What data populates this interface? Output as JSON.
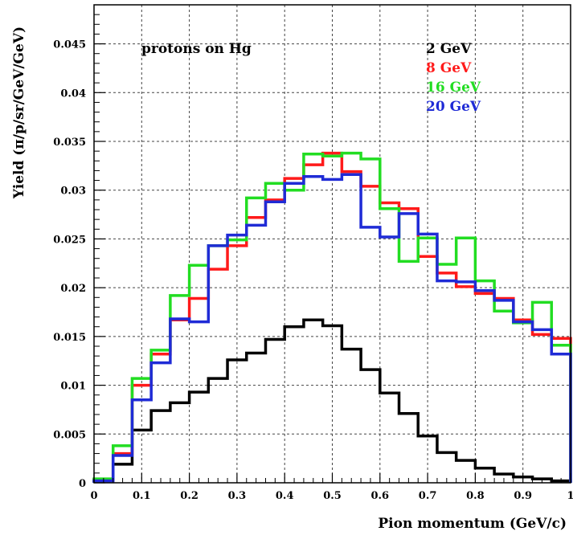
{
  "chart_data": {
    "type": "line",
    "title": "",
    "xlabel": "Pion momentum (GeV/c)",
    "ylabel": "Yield (π/p/sr/GeV/GeV)",
    "annotation": "protons on Hg",
    "xlim": [
      0,
      1
    ],
    "ylim": [
      0,
      0.049
    ],
    "grid": true,
    "legend_position": "top-right",
    "x_ticks": [
      {
        "value": 0,
        "label": "0"
      },
      {
        "value": 0.1,
        "label": "0.1"
      },
      {
        "value": 0.2,
        "label": "0.2"
      },
      {
        "value": 0.3,
        "label": "0.3"
      },
      {
        "value": 0.4,
        "label": "0.4"
      },
      {
        "value": 0.5,
        "label": "0.5"
      },
      {
        "value": 0.6,
        "label": "0.6"
      },
      {
        "value": 0.7,
        "label": "0.7"
      },
      {
        "value": 0.8,
        "label": "0.8"
      },
      {
        "value": 0.9,
        "label": "0.9"
      },
      {
        "value": 1,
        "label": "1"
      }
    ],
    "y_ticks": [
      {
        "value": 0,
        "label": "0"
      },
      {
        "value": 0.005,
        "label": "0.005"
      },
      {
        "value": 0.01,
        "label": "0.01"
      },
      {
        "value": 0.015,
        "label": "0.015"
      },
      {
        "value": 0.02,
        "label": "0.02"
      },
      {
        "value": 0.025,
        "label": "0.025"
      },
      {
        "value": 0.03,
        "label": "0.03"
      },
      {
        "value": 0.035,
        "label": "0.035"
      },
      {
        "value": 0.04,
        "label": "0.04"
      },
      {
        "value": 0.045,
        "label": "0.045"
      }
    ],
    "bin_width": 0.04,
    "x": [
      0.02,
      0.06,
      0.1,
      0.14,
      0.18,
      0.22,
      0.26,
      0.3,
      0.34,
      0.38,
      0.42,
      0.46,
      0.5,
      0.54,
      0.58,
      0.62,
      0.66,
      0.7,
      0.74,
      0.78,
      0.82,
      0.86,
      0.9,
      0.94,
      0.98
    ],
    "series": [
      {
        "name": "2 GeV",
        "color": "#000000",
        "values": [
          0.0003,
          0.0019,
          0.0054,
          0.0074,
          0.0082,
          0.0093,
          0.0107,
          0.0126,
          0.0133,
          0.0147,
          0.016,
          0.0167,
          0.0161,
          0.0137,
          0.0116,
          0.0092,
          0.0071,
          0.0048,
          0.0031,
          0.0023,
          0.0015,
          0.0009,
          0.0006,
          0.0004,
          0.0002
        ]
      },
      {
        "name": "8 GeV",
        "color": "#ff1a1a",
        "values": [
          0.0003,
          0.003,
          0.01,
          0.0132,
          0.0167,
          0.0189,
          0.0219,
          0.0243,
          0.0272,
          0.029,
          0.0312,
          0.0326,
          0.0338,
          0.0319,
          0.0304,
          0.0287,
          0.0281,
          0.0232,
          0.0215,
          0.0201,
          0.0194,
          0.0189,
          0.0167,
          0.0152,
          0.0148
        ]
      },
      {
        "name": "16 GeV",
        "color": "#22dd22",
        "values": [
          0.0004,
          0.0038,
          0.0107,
          0.0136,
          0.0192,
          0.0223,
          0.0243,
          0.0249,
          0.0292,
          0.0307,
          0.03,
          0.0337,
          0.0335,
          0.0338,
          0.0332,
          0.0281,
          0.0227,
          0.0251,
          0.0224,
          0.0251,
          0.0207,
          0.0176,
          0.0164,
          0.0185,
          0.0141
        ]
      },
      {
        "name": "20 GeV",
        "color": "#1f2bd6",
        "values": [
          0.0002,
          0.0028,
          0.0085,
          0.0123,
          0.0168,
          0.0165,
          0.0243,
          0.0254,
          0.0264,
          0.0288,
          0.0307,
          0.0314,
          0.0311,
          0.0316,
          0.0262,
          0.0252,
          0.0276,
          0.0255,
          0.0207,
          0.0206,
          0.0197,
          0.0187,
          0.0165,
          0.0157,
          0.0132
        ]
      }
    ]
  }
}
